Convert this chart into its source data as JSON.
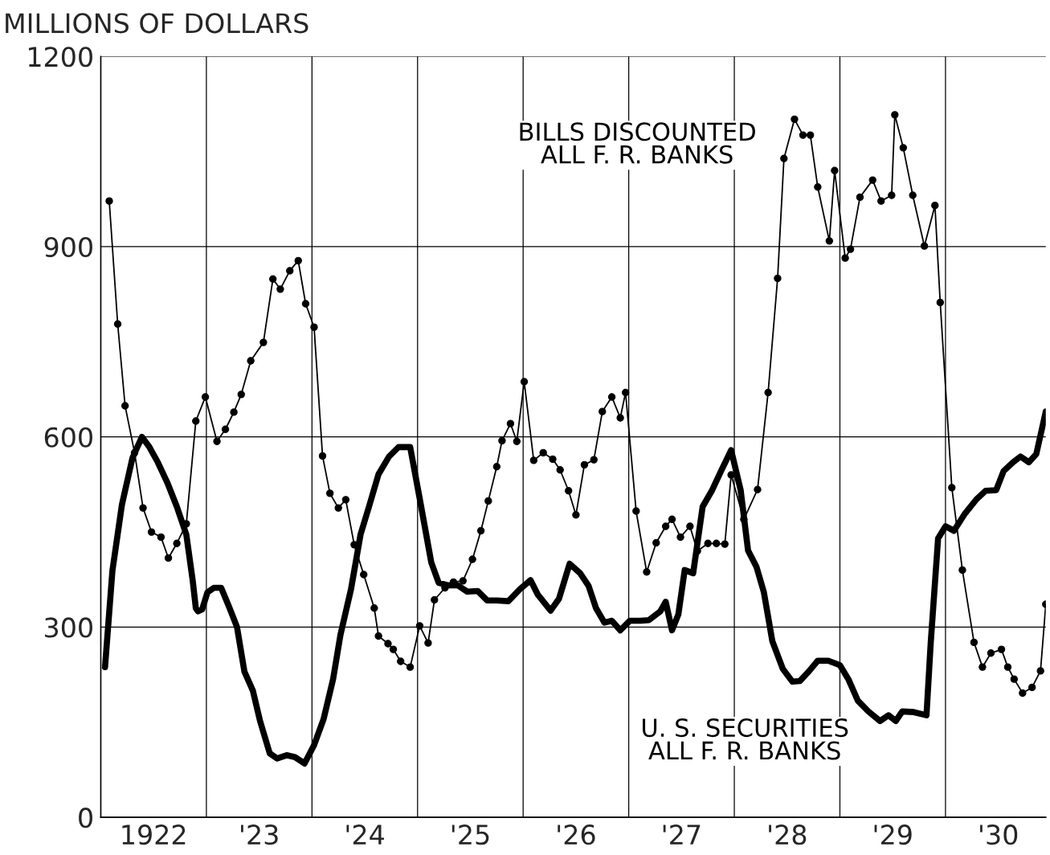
{
  "chart_data": {
    "type": "line",
    "ylabel": "MILLIONS OF DOLLARS",
    "xlim": [
      1921.5,
      1930.45
    ],
    "ylim": [
      0,
      1200
    ],
    "yticks": [
      0,
      300,
      600,
      900,
      1200
    ],
    "xticks": [
      {
        "value": 1922.5,
        "label": null
      },
      {
        "value": 1923.5,
        "label": null
      },
      {
        "value": 1924.5,
        "label": null
      },
      {
        "value": 1925.5,
        "label": null
      },
      {
        "value": 1926.5,
        "label": null
      },
      {
        "value": 1927.5,
        "label": null
      },
      {
        "value": 1928.5,
        "label": null
      },
      {
        "value": 1929.5,
        "label": null
      },
      1922,
      {
        "value": 1923,
        "label": "'23"
      },
      {
        "value": 1924,
        "label": "'24"
      },
      {
        "value": 1925,
        "label": "'25"
      },
      {
        "value": 1926,
        "label": "'26"
      },
      {
        "value": 1927,
        "label": "'27"
      },
      {
        "value": 1928,
        "label": "'28"
      },
      {
        "value": 1929,
        "label": "'29"
      },
      {
        "value": 1930,
        "label": "'30"
      }
    ],
    "grid": true,
    "series": [
      {
        "name": "BILLS DISCOUNTED\nALL F. R. BANKS",
        "color": "#000000",
        "marker": "circle",
        "x": [
          1921.58,
          1921.66,
          1921.73,
          1921.82,
          1921.9,
          1921.98,
          1922.07,
          1922.14,
          1922.22,
          1922.31,
          1922.4,
          1922.49,
          1922.6,
          1922.68,
          1922.76,
          1922.83,
          1922.92,
          1923.04,
          1923.13,
          1923.2,
          1923.29,
          1923.37,
          1923.44,
          1923.52,
          1923.6,
          1923.67,
          1923.75,
          1923.82,
          1923.9,
          1923.99,
          1924.09,
          1924.13,
          1924.22,
          1924.27,
          1924.34,
          1924.43,
          1924.52,
          1924.6,
          1924.66,
          1924.76,
          1924.84,
          1924.93,
          1925.02,
          1925.1,
          1925.17,
          1925.25,
          1925.3,
          1925.38,
          1925.44,
          1925.51,
          1925.6,
          1925.69,
          1925.78,
          1925.85,
          1925.93,
          1926.0,
          1926.08,
          1926.17,
          1926.25,
          1926.34,
          1926.42,
          1926.47,
          1926.57,
          1926.67,
          1926.76,
          1926.85,
          1926.91,
          1926.99,
          1927.08,
          1927.15,
          1927.25,
          1927.33,
          1927.41,
          1927.47,
          1927.59,
          1927.72,
          1927.82,
          1927.91,
          1927.97,
          1928.07,
          1928.15,
          1928.22,
          1928.29,
          1928.4,
          1928.45,
          1928.55,
          1928.6,
          1928.69,
          1928.81,
          1928.89,
          1928.99,
          1929.02,
          1929.1,
          1929.19,
          1929.3,
          1929.4,
          1929.45,
          1929.56,
          1929.66,
          1929.77,
          1929.85,
          1929.93,
          1930.03,
          1930.09,
          1930.15,
          1930.23,
          1930.32,
          1930.4,
          1930.45
        ],
        "values": [
          972,
          778,
          649,
          575,
          488,
          450,
          442,
          409,
          432,
          463,
          625,
          663,
          593,
          612,
          639,
          667,
          720,
          749,
          849,
          833,
          862,
          878,
          810,
          773,
          570,
          511,
          488,
          501,
          430,
          383,
          330,
          286,
          274,
          265,
          246,
          237,
          302,
          275,
          343,
          362,
          371,
          373,
          407,
          452,
          499,
          553,
          594,
          621,
          593,
          687,
          563,
          575,
          565,
          548,
          515,
          477,
          556,
          564,
          640,
          663,
          630,
          670,
          483,
          387,
          433,
          459,
          470,
          442,
          459,
          420,
          432,
          432,
          431,
          540,
          470,
          517,
          670,
          850,
          1039,
          1101,
          1076,
          1076,
          994,
          909,
          1020,
          882,
          896,
          978,
          1005,
          972,
          981,
          1108,
          1056,
          981,
          901,
          965,
          812,
          520,
          390,
          276,
          237,
          259,
          265,
          237,
          218,
          196,
          205,
          231,
          336
        ]
      },
      {
        "name": "U. S. SECURITIES\nALL F. R. BANKS",
        "color": "#000000",
        "marker": "none",
        "x": [
          1921.54,
          1921.61,
          1921.7,
          1921.8,
          1921.89,
          1921.96,
          1922.04,
          1922.13,
          1922.22,
          1922.31,
          1922.37,
          1922.4,
          1922.42,
          1922.46,
          1922.51,
          1922.57,
          1922.64,
          1922.72,
          1922.79,
          1922.86,
          1922.94,
          1923.01,
          1923.1,
          1923.17,
          1923.26,
          1923.34,
          1923.43,
          1923.52,
          1923.61,
          1923.7,
          1923.77,
          1923.87,
          1923.96,
          1924.04,
          1924.13,
          1924.23,
          1924.32,
          1924.43,
          1924.52,
          1924.63,
          1924.7,
          1924.79,
          1924.88,
          1924.97,
          1925.07,
          1925.16,
          1925.25,
          1925.36,
          1925.47,
          1925.57,
          1925.64,
          1925.76,
          1925.84,
          1925.94,
          1926.04,
          1926.12,
          1926.19,
          1926.27,
          1926.34,
          1926.42,
          1926.51,
          1926.61,
          1926.69,
          1926.8,
          1926.85,
          1926.91,
          1926.97,
          1927.03,
          1927.11,
          1927.2,
          1927.29,
          1927.38,
          1927.47,
          1927.56,
          1927.63,
          1927.71,
          1927.78,
          1927.86,
          1927.96,
          1928.05,
          1928.12,
          1928.21,
          1928.29,
          1928.39,
          1928.5,
          1928.58,
          1928.67,
          1928.77,
          1928.88,
          1928.96,
          1929.03,
          1929.09,
          1929.2,
          1929.32,
          1929.36,
          1929.43,
          1929.5,
          1929.58,
          1929.68,
          1929.79,
          1929.88,
          1929.98,
          1930.05,
          1930.14,
          1930.21,
          1930.29,
          1930.36,
          1930.45
        ],
        "values": [
          237,
          389,
          493,
          567,
          600,
          584,
          560,
          528,
          490,
          446,
          374,
          330,
          325,
          328,
          355,
          362,
          362,
          330,
          300,
          230,
          200,
          151,
          101,
          93,
          98,
          95,
          85,
          114,
          155,
          218,
          288,
          360,
          446,
          490,
          541,
          569,
          584,
          584,
          503,
          402,
          370,
          366,
          366,
          356,
          357,
          342,
          342,
          341,
          360,
          374,
          351,
          326,
          345,
          400,
          385,
          365,
          330,
          307,
          310,
          295,
          310,
          310,
          311,
          325,
          340,
          295,
          320,
          390,
          385,
          490,
          516,
          548,
          579,
          516,
          421,
          395,
          355,
          278,
          234,
          214,
          215,
          231,
          247,
          247,
          240,
          218,
          184,
          167,
          152,
          161,
          152,
          167,
          166,
          161,
          275,
          440,
          459,
          452,
          478,
          501,
          515,
          516,
          546,
          560,
          569,
          560,
          573,
          640
        ]
      }
    ],
    "legend": false
  }
}
